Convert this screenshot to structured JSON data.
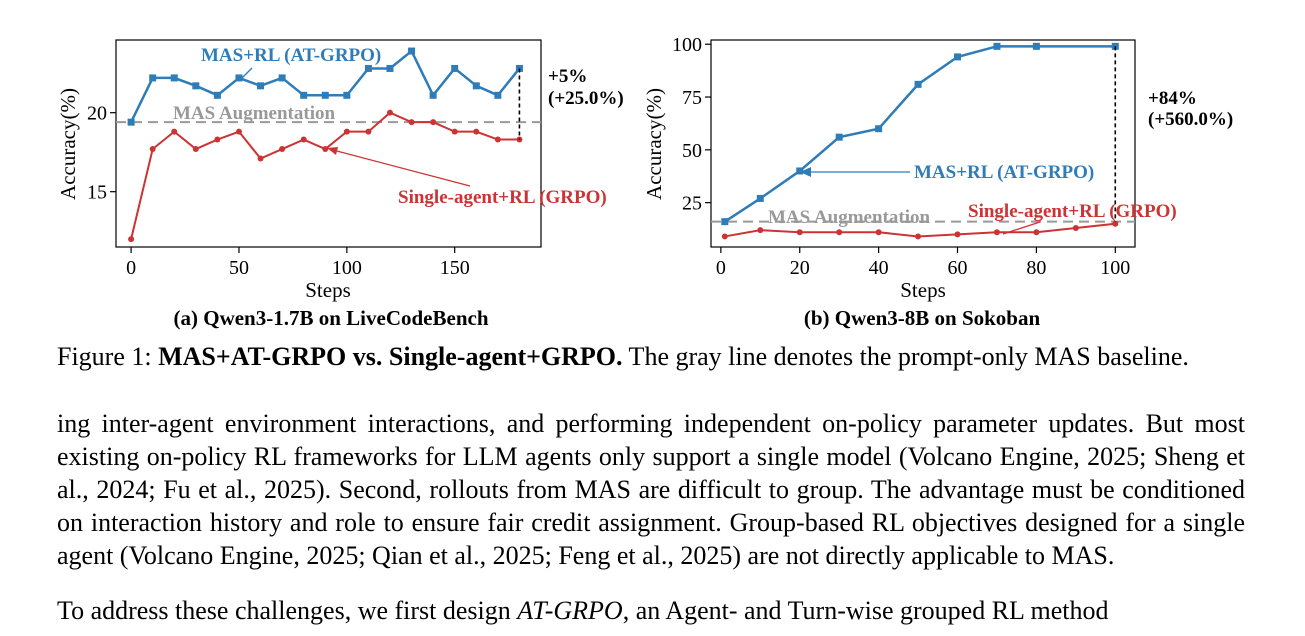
{
  "colors": {
    "mas_rl": "#2e7cb8",
    "single_rl": "#cc3333",
    "baseline": "#999999",
    "delta": "#000000"
  },
  "chart_data": [
    {
      "type": "line",
      "subtitle": "(a) Qwen3-1.7B on LiveCodeBench",
      "xlabel": "Steps",
      "ylabel": "Accuracy(%)",
      "xlim": [
        -7,
        190
      ],
      "ylim": [
        11.5,
        24.6
      ],
      "xticks": [
        0,
        50,
        100,
        150
      ],
      "yticks": [
        15,
        20
      ],
      "series": [
        {
          "name": "MAS+RL (AT-GRPO)",
          "marker": "square",
          "x": [
            0,
            10,
            20,
            30,
            40,
            50,
            60,
            70,
            80,
            90,
            100,
            110,
            120,
            130,
            140,
            150,
            160,
            170,
            180
          ],
          "y": [
            19.4,
            22.2,
            22.2,
            21.7,
            21.1,
            22.2,
            21.7,
            22.2,
            21.1,
            21.1,
            21.1,
            22.8,
            22.8,
            23.9,
            21.1,
            22.8,
            21.7,
            21.1,
            22.8
          ]
        },
        {
          "name": "Single-agent+RL (GRPO)",
          "marker": "circle",
          "x": [
            0,
            10,
            20,
            30,
            40,
            50,
            60,
            70,
            80,
            90,
            100,
            110,
            120,
            130,
            140,
            150,
            160,
            170,
            180
          ],
          "y": [
            12.0,
            17.7,
            18.8,
            17.7,
            18.3,
            18.8,
            17.1,
            17.7,
            18.3,
            17.7,
            18.8,
            18.8,
            20.0,
            19.4,
            19.4,
            18.8,
            18.8,
            18.3,
            18.3
          ]
        }
      ],
      "baseline": {
        "name": "MAS Augmentation",
        "y": 19.4
      },
      "gain": {
        "abs": "+5%",
        "rel": "(+25.0%)"
      },
      "annotations": {
        "mas_label": "MAS+RL (AT-GRPO)",
        "single_label": "Single-agent+RL (GRPO)",
        "baseline_label": "MAS Augmentation"
      }
    },
    {
      "type": "line",
      "subtitle": "(b) Qwen3-8B on Sokoban",
      "xlabel": "Steps",
      "ylabel": "Accuracy(%)",
      "xlim": [
        -2.5,
        105
      ],
      "ylim": [
        4,
        102
      ],
      "xticks": [
        0,
        20,
        40,
        60,
        80,
        100
      ],
      "yticks": [
        25,
        50,
        75,
        100
      ],
      "series": [
        {
          "name": "MAS+RL (AT-GRPO)",
          "marker": "square",
          "x": [
            1,
            10,
            20,
            30,
            40,
            50,
            60,
            70,
            80,
            100
          ],
          "y": [
            16,
            27,
            40,
            56,
            60,
            81,
            94,
            99,
            99,
            99
          ]
        },
        {
          "name": "Single-agent+RL (GRPO)",
          "marker": "circle",
          "x": [
            1,
            10,
            20,
            30,
            40,
            50,
            60,
            70,
            80,
            90,
            100
          ],
          "y": [
            9,
            12,
            11,
            11,
            11,
            9,
            10,
            11,
            11,
            13,
            15
          ]
        }
      ],
      "baseline": {
        "name": "MAS Augmentation",
        "y": 16
      },
      "gain": {
        "abs": "+84%",
        "rel": "(+560.0%)"
      },
      "annotations": {
        "mas_label": "MAS+RL (AT-GRPO)",
        "single_label": "Single-agent+RL (GRPO)",
        "baseline_label": "MAS Augmentation"
      }
    }
  ],
  "figure_caption": {
    "prefix": "Figure 1: ",
    "bold": "MAS+AT-GRPO vs. Single-agent+GRPO.",
    "rest": " The gray line denotes the prompt-only MAS baseline."
  },
  "body": {
    "para1": "ing inter-agent environment interactions, and performing independent on-policy parameter updates. But most existing on-policy RL frameworks for LLM agents only support a single model (Volcano Engine, 2025; Sheng et al., 2024; Fu et al., 2025). Second, rollouts from MAS are difficult to group. The advantage must be conditioned on interaction history and role to ensure fair credit assignment. Group-based RL objectives designed for a single agent (Volcano Engine, 2025; Qian et al., 2025; Feng et al., 2025) are not directly applicable to MAS.",
    "para2_start": "To address these challenges, we first design ",
    "para2_italic": "AT-GRPO",
    "para2_end": ", an Agent- and Turn-wise grouped RL method"
  }
}
